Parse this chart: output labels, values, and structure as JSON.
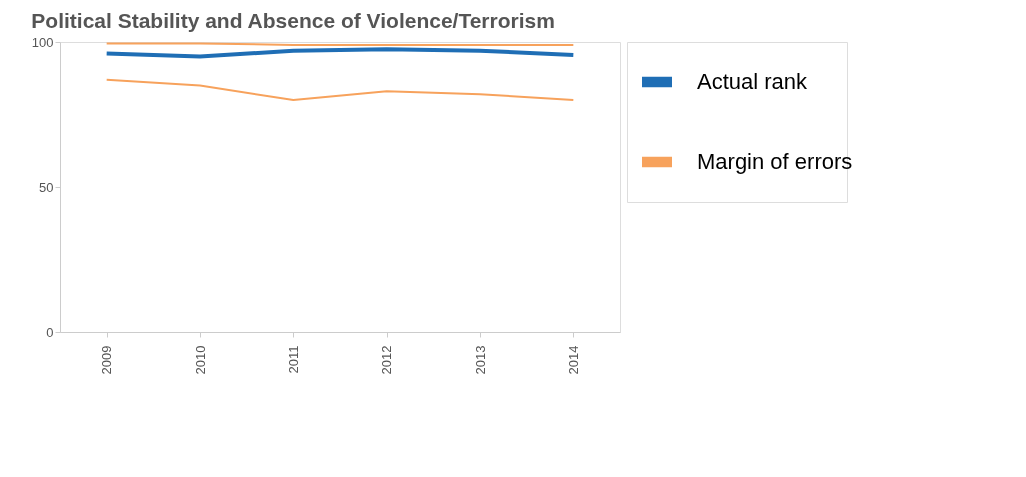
{
  "chart_data": {
    "type": "line",
    "title": "Political Stability and Absence of Violence/Terrorism",
    "categories": [
      "2009",
      "2010",
      "2011",
      "2012",
      "2013",
      "2014"
    ],
    "series": [
      {
        "name": "Actual rank",
        "color": "#1f6eb5",
        "values": [
          96,
          95,
          97,
          97.5,
          97,
          95.5
        ]
      },
      {
        "name": "Margin of errors",
        "color": "#f7a25c",
        "values": [
          99.5,
          99.5,
          99,
          99,
          99,
          99
        ]
      },
      {
        "color": "#f7a25c",
        "values": [
          87,
          85,
          80,
          83,
          82,
          80
        ]
      }
    ],
    "ylim": [
      0,
      100
    ],
    "yticks": [
      0,
      50,
      100
    ],
    "grid": false,
    "legend": "right",
    "marker": "none",
    "line_style": "solid"
  }
}
